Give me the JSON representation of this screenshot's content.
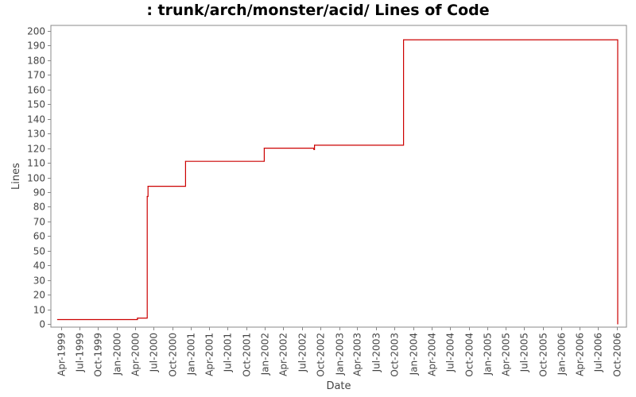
{
  "chart_data": {
    "type": "line",
    "title": ": trunk/arch/monster/acid/ Lines of Code",
    "xlabel": "Date",
    "ylabel": "Lines",
    "ylim": [
      0,
      200
    ],
    "xlim": [
      "1999-02-10",
      "2006-11-18"
    ],
    "grid": false,
    "line_style": "step",
    "colors": {
      "series": "#cc0000",
      "axis": "#888888",
      "text": "#444444"
    },
    "y_ticks": [
      0,
      10,
      20,
      30,
      40,
      50,
      60,
      70,
      80,
      90,
      100,
      110,
      120,
      130,
      140,
      150,
      160,
      170,
      180,
      190,
      200
    ],
    "x_ticks": [
      {
        "date": "1999-04-01",
        "label": "Apr-1999"
      },
      {
        "date": "1999-07-01",
        "label": "Jul-1999"
      },
      {
        "date": "1999-10-01",
        "label": "Oct-1999"
      },
      {
        "date": "2000-01-01",
        "label": "Jan-2000"
      },
      {
        "date": "2000-04-01",
        "label": "Apr-2000"
      },
      {
        "date": "2000-07-01",
        "label": "Jul-2000"
      },
      {
        "date": "2000-10-01",
        "label": "Oct-2000"
      },
      {
        "date": "2001-01-01",
        "label": "Jan-2001"
      },
      {
        "date": "2001-04-01",
        "label": "Apr-2001"
      },
      {
        "date": "2001-07-01",
        "label": "Jul-2001"
      },
      {
        "date": "2001-10-01",
        "label": "Oct-2001"
      },
      {
        "date": "2002-01-01",
        "label": "Jan-2002"
      },
      {
        "date": "2002-04-01",
        "label": "Apr-2002"
      },
      {
        "date": "2002-07-01",
        "label": "Jul-2002"
      },
      {
        "date": "2002-10-01",
        "label": "Oct-2002"
      },
      {
        "date": "2003-01-01",
        "label": "Jan-2003"
      },
      {
        "date": "2003-04-01",
        "label": "Apr-2003"
      },
      {
        "date": "2003-07-01",
        "label": "Jul-2003"
      },
      {
        "date": "2003-10-01",
        "label": "Oct-2003"
      },
      {
        "date": "2004-01-01",
        "label": "Jan-2004"
      },
      {
        "date": "2004-04-01",
        "label": "Apr-2004"
      },
      {
        "date": "2004-07-01",
        "label": "Jul-2004"
      },
      {
        "date": "2004-10-01",
        "label": "Oct-2004"
      },
      {
        "date": "2005-01-01",
        "label": "Jan-2005"
      },
      {
        "date": "2005-04-01",
        "label": "Apr-2005"
      },
      {
        "date": "2005-07-01",
        "label": "Jul-2005"
      },
      {
        "date": "2005-10-01",
        "label": "Oct-2005"
      },
      {
        "date": "2006-01-01",
        "label": "Jan-2006"
      },
      {
        "date": "2006-04-01",
        "label": "Apr-2006"
      },
      {
        "date": "2006-07-01",
        "label": "Jul-2006"
      },
      {
        "date": "2006-10-01",
        "label": "Oct-2006"
      }
    ],
    "series": [
      {
        "points": [
          {
            "x": "1999-03-15",
            "y": 3
          },
          {
            "x": "2000-04-12",
            "y": 4
          },
          {
            "x": "2000-05-30",
            "y": 87
          },
          {
            "x": "2000-06-03",
            "y": 94
          },
          {
            "x": "2000-12-05",
            "y": 111
          },
          {
            "x": "2001-12-28",
            "y": 120
          },
          {
            "x": "2002-08-30",
            "y": 119
          },
          {
            "x": "2002-09-02",
            "y": 122
          },
          {
            "x": "2003-11-15",
            "y": 194
          },
          {
            "x": "2006-10-06",
            "y": 0
          }
        ]
      }
    ]
  }
}
